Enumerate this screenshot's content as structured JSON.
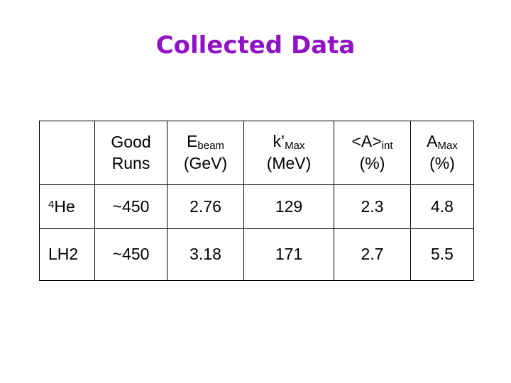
{
  "title": "Collected Data",
  "table": {
    "header": [
      {
        "text": "Good Runs"
      },
      {
        "symbol": "E",
        "sub": "beam",
        "unit": "(GeV)"
      },
      {
        "symbol": "k’",
        "sub": "Max",
        "unit": "(MeV)"
      },
      {
        "symbol": "<A>",
        "sub": "int",
        "unit": "(%)"
      },
      {
        "symbol": "A",
        "sub": "Max",
        "unit": "(%)"
      }
    ],
    "rows": [
      {
        "label": {
          "sup": "4",
          "main": "He"
        },
        "cells": [
          "~450",
          "2.76",
          "129",
          "2.3",
          "4.8"
        ]
      },
      {
        "label": {
          "main": "LH2"
        },
        "cells": [
          "~450",
          "3.18",
          "171",
          "2.7",
          "5.5"
        ]
      }
    ]
  }
}
